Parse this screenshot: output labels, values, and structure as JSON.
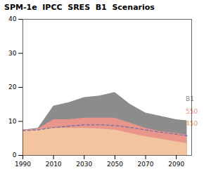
{
  "chart_data": {
    "type": "area",
    "title": "SPM-1e  IPCC  SRES  B1  Scenarios",
    "x": [
      1990,
      2000,
      2010,
      2020,
      2030,
      2040,
      2050,
      2060,
      2070,
      2080,
      2090,
      2097
    ],
    "series": [
      {
        "color": "#8c8c8c",
        "values": [
          7.5,
          8.0,
          14.5,
          15.5,
          17.0,
          17.5,
          18.5,
          15.0,
          12.5,
          11.5,
          10.5,
          10.2
        ]
      },
      {
        "color": "#e8958b",
        "values": [
          7.5,
          7.8,
          10.5,
          10.5,
          11.0,
          11.0,
          11.0,
          9.5,
          8.0,
          7.0,
          6.5,
          6.0
        ]
      },
      {
        "color": "#f2c4a0",
        "values": [
          7.3,
          7.5,
          8.0,
          8.0,
          8.0,
          7.8,
          7.5,
          6.5,
          5.5,
          4.8,
          4.0,
          3.5
        ]
      },
      {
        "type": "line",
        "line_style": "dashed",
        "color": "#7070a8",
        "values": [
          7.3,
          7.5,
          8.2,
          8.6,
          9.0,
          9.0,
          8.8,
          8.2,
          7.5,
          6.8,
          6.2,
          5.8
        ]
      }
    ],
    "annotations": [
      {
        "text": "B1",
        "color": "#888888"
      },
      {
        "text": "550",
        "color": "#e8958b"
      },
      {
        "text": "450",
        "color": "#e8a060"
      }
    ],
    "xlim": [
      1990,
      2100
    ],
    "ylim": [
      0,
      40
    ],
    "xticks": [
      1990,
      2010,
      2030,
      2050,
      2070,
      2090
    ],
    "yticks": [
      0,
      10,
      20,
      30,
      40
    ]
  }
}
